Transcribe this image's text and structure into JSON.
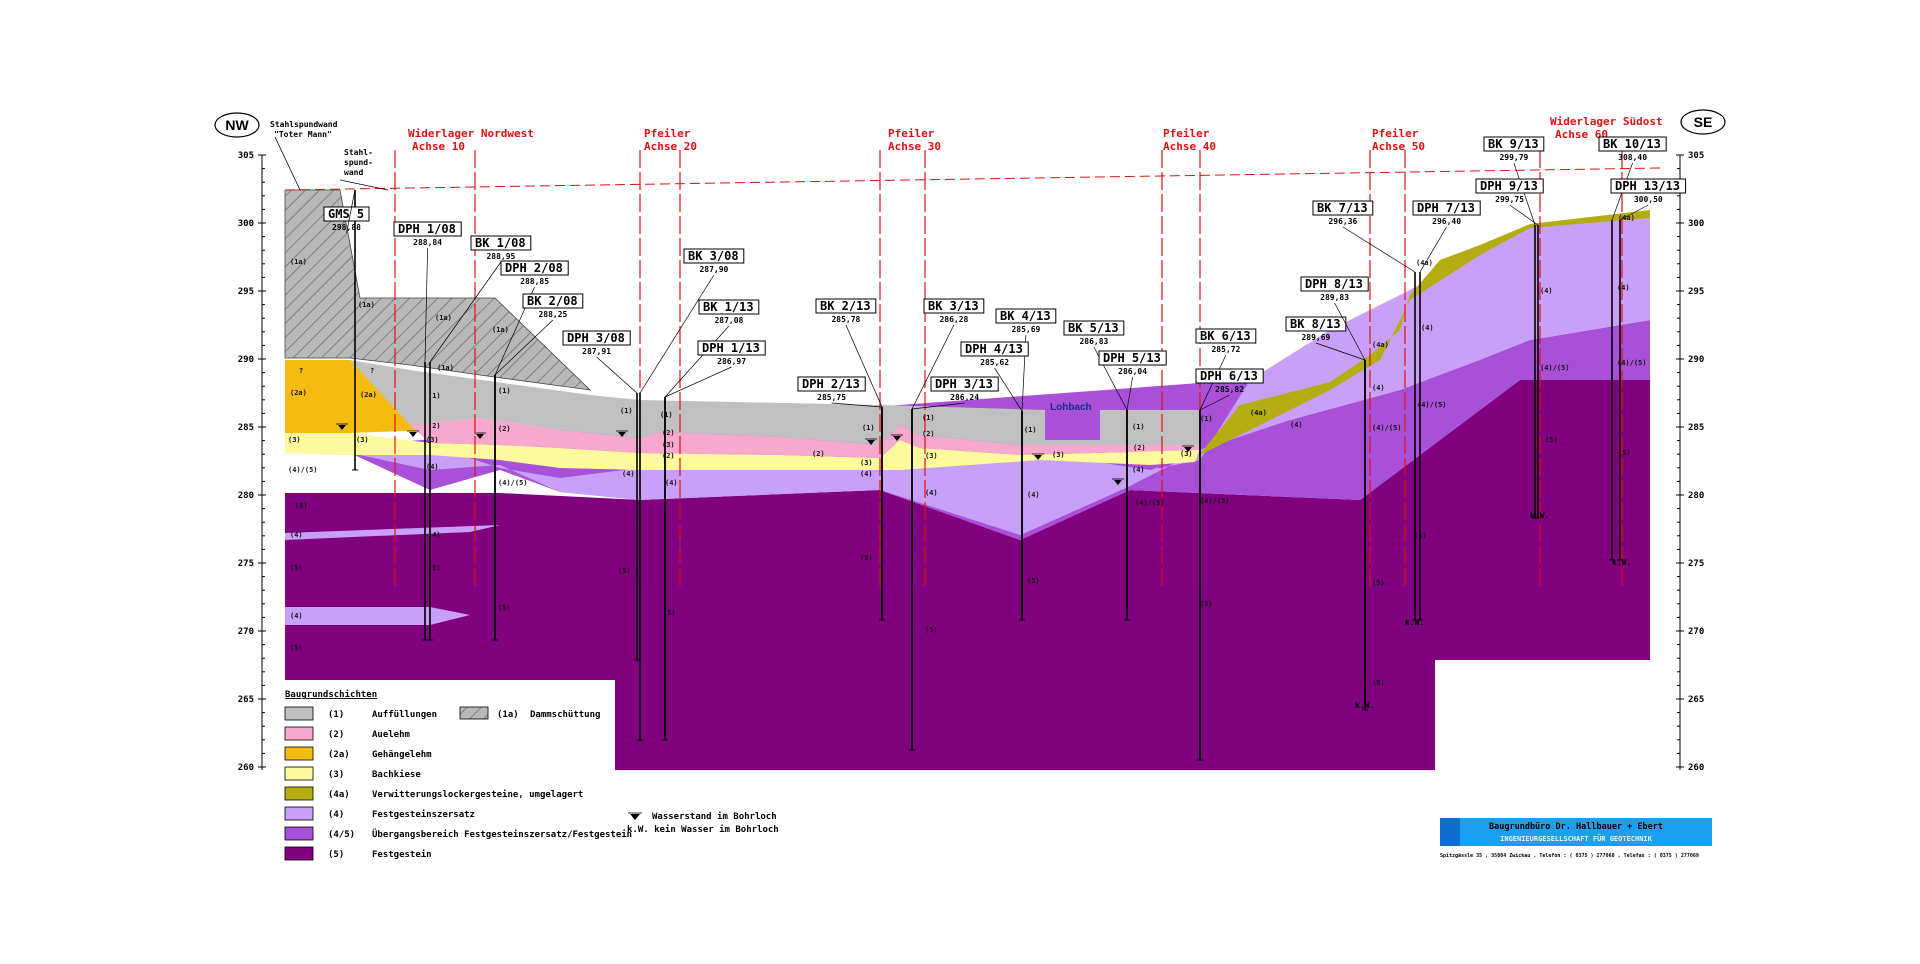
{
  "compass": {
    "left": "NW",
    "right": "SE"
  },
  "notes": {
    "sheetpile_anchor": [
      "Stahlspundwand",
      "\"Toter Mann\""
    ],
    "sheetpile": [
      "Stahl-",
      "spund-",
      "wand"
    ],
    "creek": "Lohbach"
  },
  "axes": [
    {
      "title": "Widerlager Nordwest",
      "sub": "Achse 10"
    },
    {
      "title": "Pfeiler",
      "sub": "Achse 20"
    },
    {
      "title": "Pfeiler",
      "sub": "Achse 30"
    },
    {
      "title": "Pfeiler",
      "sub": "Achse 40"
    },
    {
      "title": "Pfeiler",
      "sub": "Achse 50"
    },
    {
      "title": "Widerlager Südost",
      "sub": "Achse 60"
    }
  ],
  "elevation_ticks": [
    "305",
    "300",
    "295",
    "290",
    "285",
    "280",
    "275",
    "270",
    "265",
    "260"
  ],
  "borings": [
    {
      "name": "GMS 5",
      "elev": "298,88"
    },
    {
      "name": "DPH 1/08",
      "elev": "288,84"
    },
    {
      "name": "BK 1/08",
      "elev": "288,95"
    },
    {
      "name": "DPH 2/08",
      "elev": "288,85"
    },
    {
      "name": "BK 2/08",
      "elev": "288,25"
    },
    {
      "name": "DPH 3/08",
      "elev": "287,91"
    },
    {
      "name": "BK 3/08",
      "elev": "287,90"
    },
    {
      "name": "BK 1/13",
      "elev": "287,08"
    },
    {
      "name": "DPH 1/13",
      "elev": "286,97"
    },
    {
      "name": "BK 2/13",
      "elev": "285,78"
    },
    {
      "name": "DPH 2/13",
      "elev": "285,75"
    },
    {
      "name": "BK 3/13",
      "elev": "286,28"
    },
    {
      "name": "DPH 3/13",
      "elev": "286,24"
    },
    {
      "name": "BK 4/13",
      "elev": "285,69"
    },
    {
      "name": "DPH 4/13",
      "elev": "285,62"
    },
    {
      "name": "BK 5/13",
      "elev": "286,83"
    },
    {
      "name": "DPH 5/13",
      "elev": "286,04"
    },
    {
      "name": "BK 6/13",
      "elev": "285,72"
    },
    {
      "name": "DPH 6/13",
      "elev": "285,82"
    },
    {
      "name": "BK 8/13",
      "elev": "289,69"
    },
    {
      "name": "DPH 8/13",
      "elev": "289,83"
    },
    {
      "name": "BK 7/13",
      "elev": "296,36"
    },
    {
      "name": "DPH 7/13",
      "elev": "296,40"
    },
    {
      "name": "BK 9/13",
      "elev": "299,79"
    },
    {
      "name": "DPH 9/13",
      "elev": "299,75"
    },
    {
      "name": "BK 10/13",
      "elev": "308,40"
    },
    {
      "name": "DPH 13/13",
      "elev": "300,50"
    }
  ],
  "boring_codes": {
    "no_water": "k.W."
  },
  "layer_codes": {
    "c1": "(1)",
    "c1a": "(1a)",
    "c2": "(2)",
    "c2a": "(2a)",
    "c3": "(3)",
    "c4a": "(4a)",
    "c4": "(4)",
    "c45": "(4)/(5)",
    "c5": "(5)",
    "q": "?"
  },
  "legend": {
    "title": "Baugrundschichten",
    "items": [
      {
        "code": "(1)",
        "label": "Auffüllungen",
        "color": "#c0c0c0"
      },
      {
        "code": "(2)",
        "label": "Auelehm",
        "color": "#f7a8cf"
      },
      {
        "code": "(2a)",
        "label": "Gehängelehm",
        "color": "#f5bb10"
      },
      {
        "code": "(3)",
        "label": "Bachkiese",
        "color": "#fdfa9e"
      },
      {
        "code": "(4a)",
        "label": "Verwitterungslockergesteine, umgelagert",
        "color": "#b3ad12"
      },
      {
        "code": "(4)",
        "label": "Festgesteinszersatz",
        "color": "#c8a0f8"
      },
      {
        "code": "(4/5)",
        "label": "Übergangsbereich Festgesteinszersatz/Festgestein",
        "color": "#a950d8"
      },
      {
        "code": "(5)",
        "label": "Festgestein",
        "color": "#800080"
      }
    ],
    "hatched": {
      "code": "(1a)",
      "label": "Dammschüttung"
    },
    "water_note": "Wasserstand im Bohrloch",
    "no_water_note": "k.W. kein Wasser im Bohrloch"
  },
  "title_block": {
    "company": "Baugrundbüro  Dr. Hallbauer + Ebert",
    "subtitle": "INGENIEURGESELLSCHAFT  FÜR  GEOTECHNIK",
    "address": "Spitzgässle 35 ,  35004  Zwickau ,  Telefon : ( 0375 ) 277060 ,  Telefax : ( 0375 ) 277069",
    "color": "#1aa0f0"
  }
}
